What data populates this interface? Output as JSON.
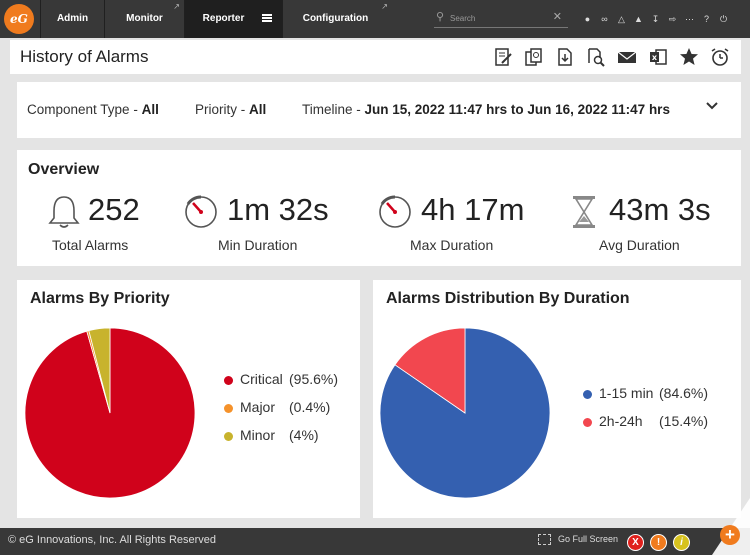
{
  "nav": {
    "logo": "eG",
    "tabs": [
      {
        "label": "Admin",
        "active": false,
        "external": false
      },
      {
        "label": "Monitor",
        "active": false,
        "external": true
      },
      {
        "label": "Reporter",
        "active": true,
        "external": false
      },
      {
        "label": "Configuration",
        "active": false,
        "external": true
      }
    ],
    "search_placeholder": "Search",
    "search_value": ""
  },
  "page": {
    "title": "History of Alarms",
    "actions": [
      "edit-icon",
      "settings-compare-icon",
      "pdf-download-icon",
      "preview-icon",
      "email-icon",
      "excel-icon",
      "favorite-star-icon",
      "alarm-clock-icon"
    ]
  },
  "filters": {
    "component_type": {
      "label": "Component Type - ",
      "value": "All"
    },
    "priority": {
      "label": "Priority - ",
      "value": "All"
    },
    "timeline": {
      "label": "Timeline - ",
      "value": "Jun 15, 2022 11:47 hrs to Jun 16, 2022 11:47 hrs"
    }
  },
  "overview": {
    "title": "Overview",
    "total_alarms": {
      "value": "252",
      "label": "Total Alarms",
      "icon": "bell-icon"
    },
    "min_duration": {
      "value": "1m 32s",
      "label": "Min Duration",
      "icon": "timer-icon"
    },
    "max_duration": {
      "value": "4h 17m",
      "label": "Max Duration",
      "icon": "timer-icon"
    },
    "avg_duration": {
      "value": "43m 3s",
      "label": "Avg Duration",
      "icon": "hourglass-icon"
    }
  },
  "alarms_by_priority": {
    "title": "Alarms By Priority",
    "slices": [
      {
        "name": "Critical",
        "percent_label": "(95.6%)",
        "value": 95.6,
        "color": "#d0021b"
      },
      {
        "name": "Major",
        "percent_label": "(0.4%)",
        "value": 0.4,
        "color": "#f5922b"
      },
      {
        "name": "Minor",
        "percent_label": "(4%)",
        "value": 4.0,
        "color": "#c8b32d"
      }
    ]
  },
  "alarms_by_duration": {
    "title": "Alarms Distribution By Duration",
    "slices": [
      {
        "name": "1-15 min",
        "percent_label": "(84.6%)",
        "value": 84.6,
        "color": "#3460b0"
      },
      {
        "name": "2h-24h",
        "percent_label": "(15.4%)",
        "value": 15.4,
        "color": "#f2474f"
      }
    ]
  },
  "footer": {
    "copyright": "© eG Innovations, Inc. All Rights Reserved",
    "fullscreen_label": "Go Full Screen",
    "badges": [
      {
        "symbol": "X",
        "color": "#e0201c",
        "name": "critical-alarm-badge"
      },
      {
        "symbol": "!",
        "color": "#f07b1e",
        "name": "major-alarm-badge"
      },
      {
        "symbol": "i",
        "color": "#d7c21e",
        "name": "minor-alarm-badge"
      }
    ],
    "add_label": "+"
  }
}
